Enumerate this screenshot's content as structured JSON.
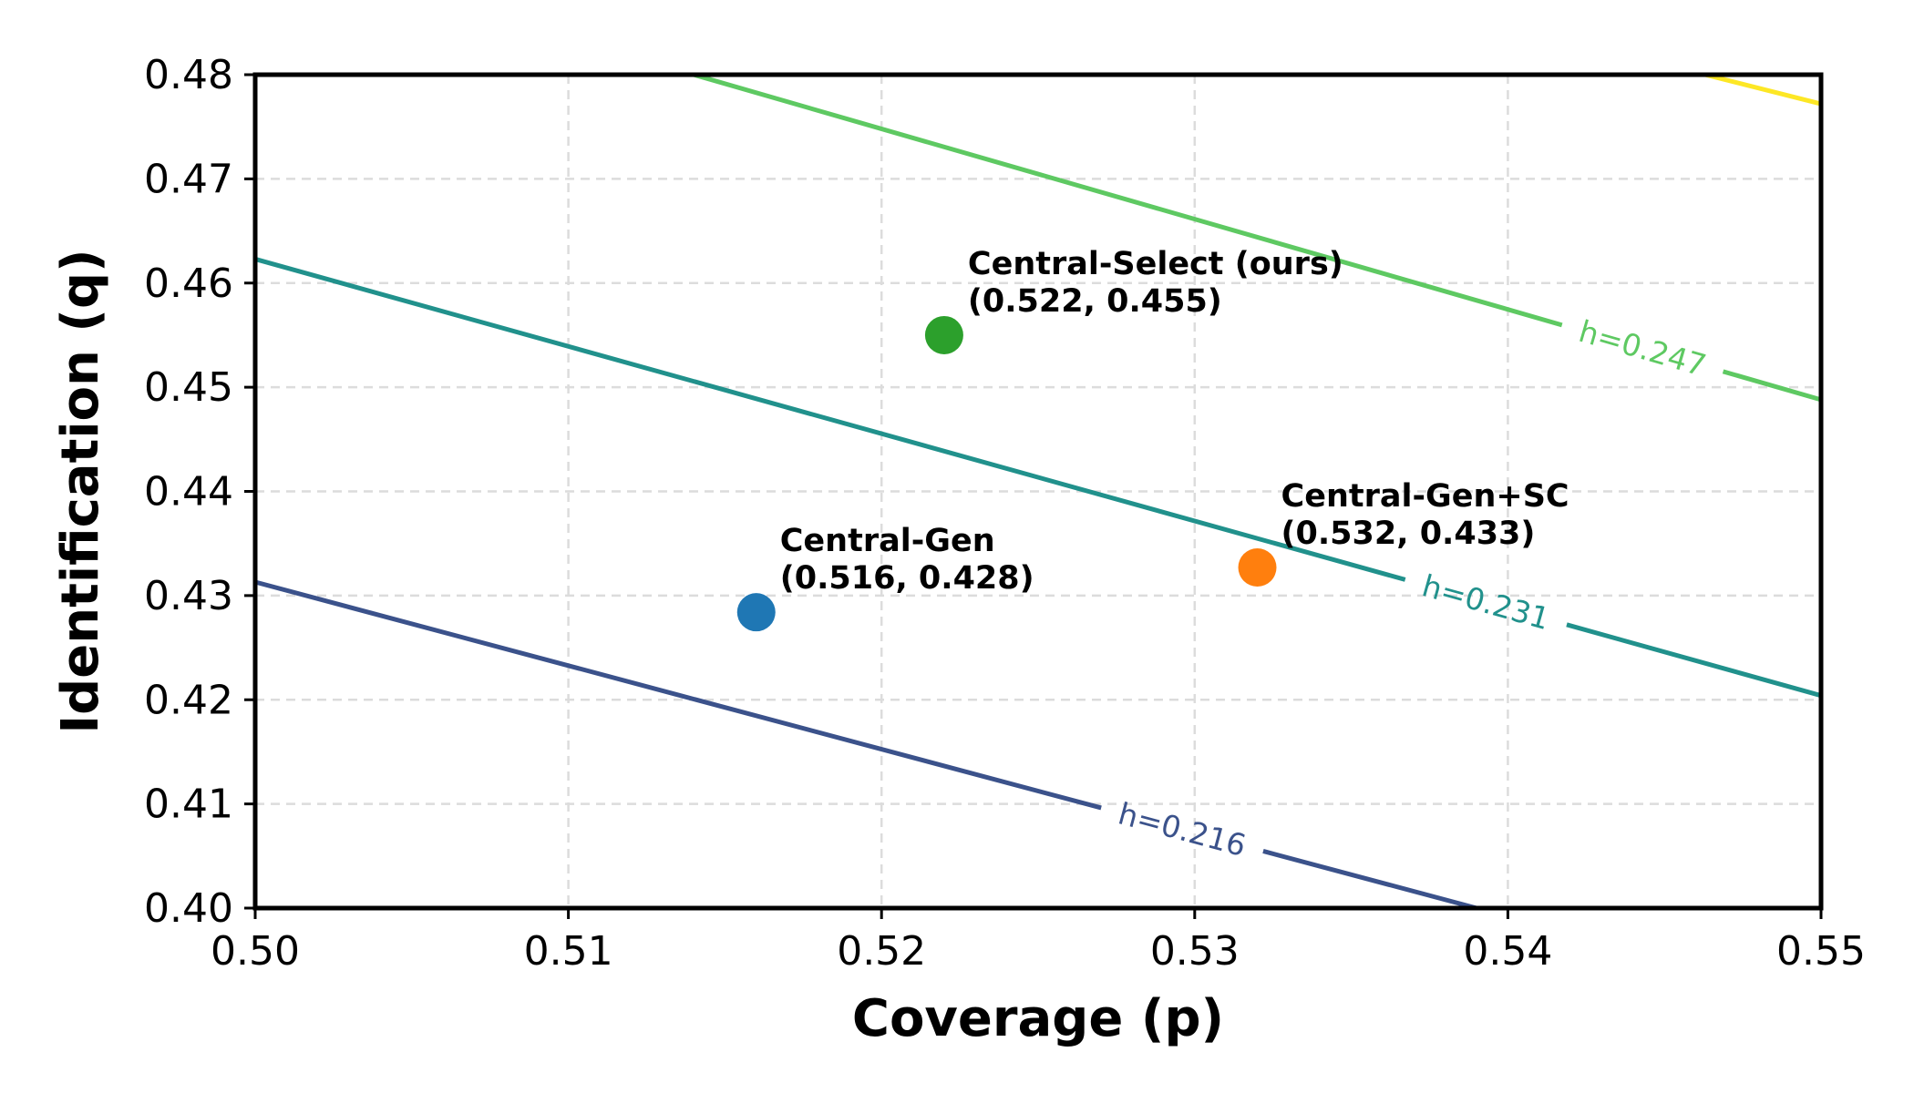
{
  "chart_data": {
    "type": "scatter",
    "title": "",
    "xlabel": "Coverage (p)",
    "ylabel": "Identification (q)",
    "xlim": [
      0.5,
      0.55
    ],
    "ylim": [
      0.4,
      0.48
    ],
    "grid": true,
    "x_ticks": [
      {
        "value": 0.5,
        "label": "0.50"
      },
      {
        "value": 0.51,
        "label": "0.51"
      },
      {
        "value": 0.52,
        "label": "0.52"
      },
      {
        "value": 0.53,
        "label": "0.53"
      },
      {
        "value": 0.54,
        "label": "0.54"
      },
      {
        "value": 0.55,
        "label": "0.55"
      }
    ],
    "y_ticks": [
      {
        "value": 0.4,
        "label": "0.40"
      },
      {
        "value": 0.41,
        "label": "0.41"
      },
      {
        "value": 0.42,
        "label": "0.42"
      },
      {
        "value": 0.43,
        "label": "0.43"
      },
      {
        "value": 0.44,
        "label": "0.44"
      },
      {
        "value": 0.45,
        "label": "0.45"
      },
      {
        "value": 0.46,
        "label": "0.46"
      },
      {
        "value": 0.47,
        "label": "0.47"
      },
      {
        "value": 0.48,
        "label": "0.48"
      }
    ],
    "points": [
      {
        "name": "Central-Gen",
        "label": "Central-Gen",
        "coords_label": "(0.516, 0.428)",
        "x": 0.516,
        "y": 0.4284,
        "color": "#1f77b4"
      },
      {
        "name": "Central-Select (ours)",
        "label": "Central-Select (ours)",
        "coords_label": "(0.522, 0.455)",
        "x": 0.522,
        "y": 0.455,
        "color": "#2ca02c"
      },
      {
        "name": "Central-Gen+SC",
        "label": "Central-Gen+SC",
        "coords_label": "(0.532, 0.433)",
        "x": 0.532,
        "y": 0.4327,
        "color": "#ff7f0e"
      }
    ],
    "contours": [
      {
        "label": "h=0.216",
        "h": 0.216,
        "color": "#3b528b",
        "points": [
          [
            0.5,
            0.4313
          ],
          [
            0.539,
            0.4
          ]
        ],
        "label_at": 0.5296
      },
      {
        "label": "h=0.231",
        "h": 0.231,
        "color": "#21918c",
        "points": [
          [
            0.5,
            0.4623
          ],
          [
            0.55,
            0.4204
          ]
        ],
        "label_at": 0.5393
      },
      {
        "label": "h=0.247",
        "h": 0.247,
        "color": "#5ec962",
        "points": [
          [
            0.514,
            0.48
          ],
          [
            0.55,
            0.4488
          ]
        ],
        "label_at": 0.5443
      },
      {
        "label": "",
        "h": null,
        "color": "#fde725",
        "points": [
          [
            0.5463,
            0.48
          ],
          [
            0.55,
            0.4772
          ]
        ],
        "label_at": null
      }
    ]
  }
}
